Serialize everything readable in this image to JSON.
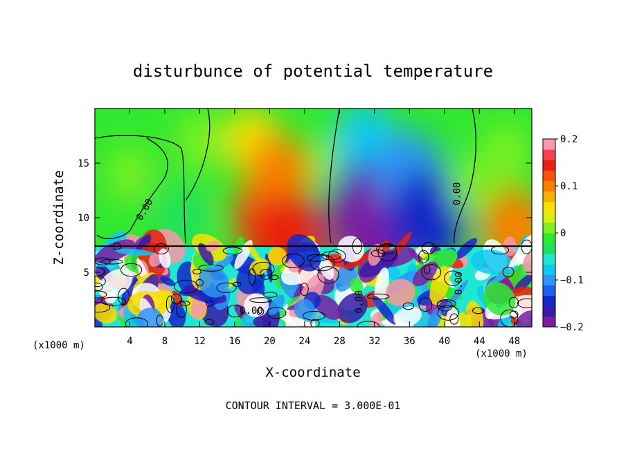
{
  "chart_data": {
    "type": "heatmap",
    "title": "disturbunce of potential temperature",
    "xlabel": "X-coordinate",
    "ylabel": "Z-coordinate",
    "x_unit_left": "(x1000 m)",
    "x_unit_right": "(x1000 m)",
    "xlim": [
      0,
      50
    ],
    "ylim": [
      0,
      20
    ],
    "x_ticks": [
      4,
      8,
      12,
      16,
      20,
      24,
      28,
      32,
      36,
      40,
      44,
      48
    ],
    "y_ticks": [
      5,
      10,
      15
    ],
    "colorbar": {
      "range": [
        -0.2,
        0.2
      ],
      "tick_values": [
        0.2,
        0.1,
        0,
        -0.1,
        -0.2
      ],
      "tick_labels": [
        "0.2",
        "0.1",
        "0",
        "−0.1",
        "−0.2"
      ],
      "colors": [
        "#7a1fa0",
        "#3a1aa8",
        "#1428c8",
        "#1f5ff0",
        "#2d95f5",
        "#10c8f0",
        "#20e8d0",
        "#20e060",
        "#30e830",
        "#7ef020",
        "#d8f010",
        "#f8e000",
        "#f8b000",
        "#f88000",
        "#f85010",
        "#e82010",
        "#f84050",
        "#f898a8"
      ]
    },
    "contour_labels": [
      "0.00",
      "0.00",
      "0.00",
      "0.00",
      "0.00"
    ],
    "regions": [
      {
        "x": 4,
        "z": 14,
        "value": 0.01
      },
      {
        "x": 10,
        "z": 10,
        "value": -0.04
      },
      {
        "x": 12,
        "z": 17,
        "value": 0.02
      },
      {
        "x": 18,
        "z": 17,
        "value": 0.05
      },
      {
        "x": 20,
        "z": 10,
        "value": 0.13
      },
      {
        "x": 21,
        "z": 14,
        "value": 0.09
      },
      {
        "x": 22,
        "z": 8,
        "value": 0.15
      },
      {
        "x": 27,
        "z": 15,
        "value": 0.0
      },
      {
        "x": 31,
        "z": 17,
        "value": -0.08
      },
      {
        "x": 31,
        "z": 11,
        "value": -0.14
      },
      {
        "x": 32,
        "z": 9,
        "value": -0.18
      },
      {
        "x": 36,
        "z": 14,
        "value": -0.11
      },
      {
        "x": 38,
        "z": 10,
        "value": -0.15
      },
      {
        "x": 43,
        "z": 13,
        "value": 0.0
      },
      {
        "x": 48,
        "z": 9,
        "value": 0.1
      },
      {
        "x": 47,
        "z": 16,
        "value": 0.02
      }
    ],
    "footer": "CONTOUR INTERVAL = 3.000E-01"
  }
}
